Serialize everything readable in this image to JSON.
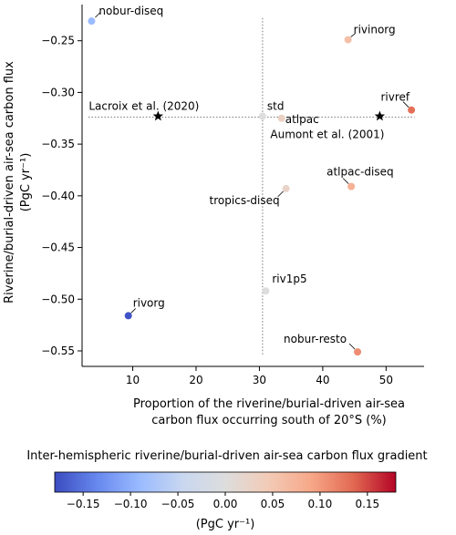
{
  "chart_data": {
    "type": "scatter",
    "xlabel_lines": [
      "Proportion of the riverine/burial-driven air-sea",
      "carbon flux occurring south of 20°S (%)"
    ],
    "ylabel_lines": [
      "Riverine/burial-driven air-sea carbon flux",
      "(PgC yr⁻¹)"
    ],
    "xlim": [
      2,
      56
    ],
    "ylim": [
      -0.565,
      -0.215
    ],
    "xticks": [
      10,
      20,
      30,
      40,
      50
    ],
    "yticks": [
      -0.55,
      -0.5,
      -0.45,
      -0.4,
      -0.35,
      -0.3,
      -0.25
    ],
    "ytick_labels": [
      "−0.55",
      "−0.50",
      "−0.45",
      "−0.40",
      "−0.35",
      "−0.30",
      "−0.25"
    ],
    "grid": false,
    "reference_lines": {
      "vline_x": 30.5,
      "hline_y": -0.324
    },
    "points": [
      {
        "label": "nobur-diseq",
        "x": 3.5,
        "y": -0.231,
        "gradient": -0.09
      },
      {
        "label": "rivinorg",
        "x": 44.0,
        "y": -0.249,
        "gradient": 0.06
      },
      {
        "label": "rivref",
        "x": 54.0,
        "y": -0.317,
        "gradient": 0.13
      },
      {
        "label": "std",
        "x": 30.5,
        "y": -0.323,
        "gradient": 0.0
      },
      {
        "label": "atlpac",
        "x": 33.5,
        "y": -0.325,
        "gradient": 0.03
      },
      {
        "label": "atlpac-diseq",
        "x": 44.5,
        "y": -0.391,
        "gradient": 0.08
      },
      {
        "label": "tropics-diseq",
        "x": 34.2,
        "y": -0.393,
        "gradient": 0.025
      },
      {
        "label": "riv1p5",
        "x": 31.0,
        "y": -0.492,
        "gradient": 0.0
      },
      {
        "label": "rivorg",
        "x": 9.3,
        "y": -0.516,
        "gradient": -0.175
      },
      {
        "label": "nobur-resto",
        "x": 45.5,
        "y": -0.551,
        "gradient": 0.11
      }
    ],
    "reference_points": [
      {
        "label": "Lacroix et al. (2020)",
        "x": 14.0,
        "y": -0.323,
        "marker": "star"
      },
      {
        "label": "Aumont et al. (2001)",
        "x": 49.0,
        "y": -0.323,
        "marker": "star"
      }
    ],
    "colorbar": {
      "title": "Inter-hemispheric riverine/burial-driven air-sea carbon flux gradient",
      "unit": "(PgC yr⁻¹)",
      "range": [
        -0.18,
        0.18
      ],
      "ticks": [
        -0.15,
        -0.1,
        -0.05,
        0.0,
        0.05,
        0.1,
        0.15
      ],
      "tick_labels": [
        "−0.15",
        "−0.10",
        "−0.05",
        "0.00",
        "0.05",
        "0.10",
        "0.15"
      ],
      "colormap": "coolwarm",
      "colors": [
        "#3b4cc0",
        "#6788ee",
        "#9abbff",
        "#c9d7f0",
        "#dddddd",
        "#f2cbb7",
        "#f7a889",
        "#e26952",
        "#b40426"
      ]
    }
  }
}
